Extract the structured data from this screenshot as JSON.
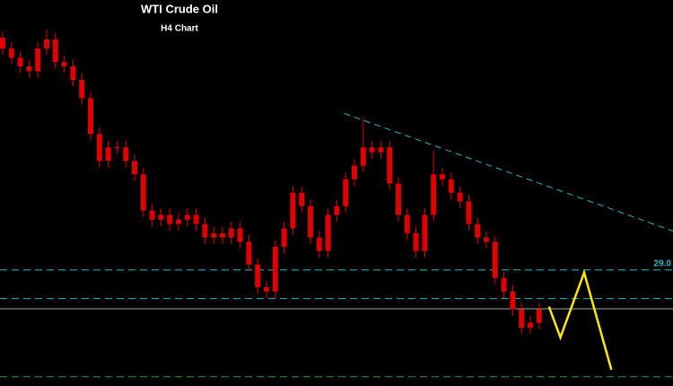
{
  "chart_data": {
    "type": "candlestick",
    "title": "WTI Crude Oil",
    "subtitle": "H4 Chart",
    "ylim": [
      26.85,
      34.0
    ],
    "xlim": [
      -0.3,
      76.2
    ],
    "color": "#e00000",
    "open": [
      33.3,
      33.1,
      32.93,
      32.77,
      32.68,
      33.1,
      33.27,
      32.85,
      32.77,
      32.52,
      32.18,
      31.52,
      31.02,
      31.27,
      31.27,
      31.02,
      30.77,
      30.1,
      29.93,
      30.02,
      29.85,
      29.93,
      30.02,
      29.85,
      29.6,
      29.68,
      29.6,
      29.77,
      29.52,
      29.1,
      28.68,
      28.6,
      29.43,
      29.77,
      30.43,
      30.18,
      29.6,
      29.35,
      30.02,
      30.18,
      30.68,
      30.93,
      31.27,
      31.18,
      31.27,
      30.6,
      30.02,
      29.68,
      29.35,
      30.02,
      30.77,
      30.68,
      30.43,
      30.27,
      29.85,
      29.6,
      29.52,
      28.85,
      28.6,
      28.27,
      27.93,
      28.02
    ],
    "high": [
      33.42,
      33.22,
      33.05,
      32.89,
      33.22,
      33.45,
      33.39,
      32.97,
      32.89,
      32.64,
      32.3,
      31.64,
      31.39,
      31.39,
      31.39,
      31.14,
      30.89,
      30.22,
      30.14,
      30.14,
      30.05,
      30.14,
      30.14,
      29.97,
      29.8,
      29.8,
      29.89,
      29.89,
      29.64,
      29.22,
      28.8,
      29.55,
      29.89,
      30.55,
      30.55,
      30.3,
      29.72,
      30.14,
      30.3,
      30.8,
      31.05,
      31.8,
      31.39,
      31.39,
      31.39,
      30.72,
      30.14,
      29.8,
      30.14,
      31.2,
      30.89,
      30.8,
      30.55,
      30.39,
      29.97,
      29.72,
      29.64,
      28.97,
      28.72,
      28.39,
      28.14,
      28.39
    ],
    "low": [
      32.98,
      32.81,
      32.65,
      32.56,
      32.56,
      32.98,
      32.73,
      32.65,
      32.4,
      32.06,
      31.4,
      30.9,
      30.9,
      31.15,
      30.9,
      30.65,
      29.98,
      29.81,
      29.81,
      29.73,
      29.73,
      29.81,
      29.73,
      29.48,
      29.48,
      29.48,
      29.48,
      29.4,
      28.98,
      28.56,
      28.48,
      28.48,
      29.31,
      29.65,
      30.06,
      29.48,
      29.23,
      29.23,
      29.9,
      30.06,
      30.56,
      30.81,
      31.06,
      31.06,
      30.48,
      29.9,
      29.56,
      29.23,
      29.23,
      29.9,
      30.56,
      30.31,
      30.15,
      29.73,
      29.48,
      29.4,
      28.73,
      28.48,
      28.15,
      27.81,
      27.81,
      27.9
    ],
    "close": [
      33.1,
      32.93,
      32.77,
      32.68,
      33.1,
      33.27,
      32.85,
      32.77,
      32.52,
      32.18,
      31.52,
      31.02,
      31.27,
      31.27,
      31.02,
      30.77,
      30.1,
      29.93,
      30.02,
      29.85,
      29.93,
      30.02,
      29.85,
      29.6,
      29.68,
      29.6,
      29.77,
      29.52,
      29.1,
      28.68,
      28.6,
      29.43,
      29.77,
      30.43,
      30.18,
      29.6,
      29.35,
      30.02,
      30.18,
      30.68,
      30.93,
      31.27,
      31.18,
      31.27,
      30.6,
      30.02,
      29.68,
      29.35,
      30.02,
      30.77,
      30.68,
      30.43,
      30.27,
      29.85,
      29.6,
      29.52,
      28.85,
      28.6,
      28.27,
      27.93,
      28.02,
      28.27
    ],
    "levels": [
      {
        "value": 29.0,
        "label": "29.0",
        "color": "#2bb5c8",
        "dashed": true
      },
      {
        "value": 28.47,
        "color": "#2bb5c8",
        "dashed": true
      },
      {
        "value": 28.28,
        "color": "#9aa4a8",
        "dashed": false
      },
      {
        "value": 27.02,
        "color": "#2e9a2e",
        "dashed": true
      }
    ],
    "trendline": {
      "x": [
        38.8,
        76.2
      ],
      "values": [
        31.9,
        29.72
      ],
      "color": "#2bb5c8"
    },
    "projection": {
      "x": [
        62.1,
        63.4,
        66.1,
        69.2
      ],
      "values": [
        28.32,
        27.75,
        28.95,
        27.15
      ],
      "color": "#ffe800"
    }
  }
}
